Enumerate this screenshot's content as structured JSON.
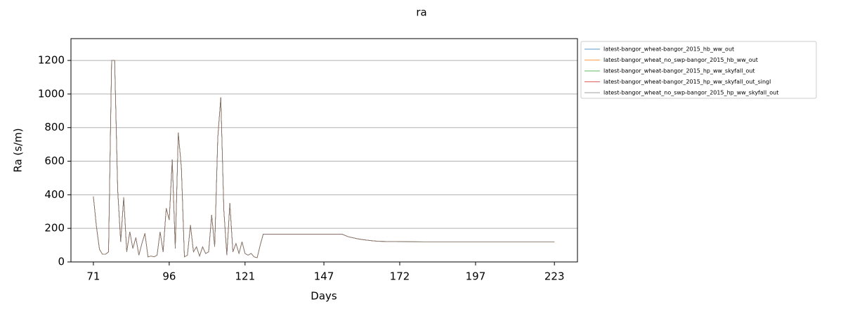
{
  "chart_data": {
    "type": "line",
    "title": "ra",
    "xlabel": "Days",
    "ylabel": "Ra (s/m)",
    "x": [
      71,
      72,
      73,
      74,
      75,
      76,
      77,
      78,
      79,
      80,
      81,
      82,
      83,
      84,
      85,
      86,
      87,
      88,
      89,
      90,
      91,
      92,
      93,
      94,
      95,
      96,
      97,
      98,
      99,
      100,
      101,
      102,
      103,
      104,
      105,
      106,
      107,
      108,
      109,
      110,
      111,
      112,
      113,
      114,
      115,
      116,
      117,
      118,
      119,
      120,
      121,
      122,
      123,
      124,
      125,
      126,
      127,
      130,
      135,
      140,
      145,
      150,
      153,
      155,
      158,
      160,
      163,
      165,
      170,
      180,
      190,
      200,
      210,
      223
    ],
    "series": [
      {
        "name": "latest-bangor_wheat-bangor_2015_hb_ww_out",
        "color": "#1f77b4",
        "values": [
          390,
          210,
          75,
          45,
          45,
          60,
          1200,
          1200,
          430,
          120,
          385,
          60,
          180,
          80,
          145,
          40,
          110,
          170,
          30,
          35,
          30,
          40,
          180,
          60,
          320,
          250,
          610,
          80,
          770,
          560,
          30,
          40,
          220,
          60,
          90,
          35,
          90,
          50,
          60,
          280,
          90,
          740,
          980,
          310,
          40,
          350,
          60,
          110,
          50,
          120,
          50,
          40,
          50,
          30,
          25,
          100,
          165,
          165,
          165,
          165,
          165,
          165,
          165,
          150,
          138,
          132,
          126,
          123,
          121,
          120,
          120,
          120,
          120,
          120
        ]
      },
      {
        "name": "latest-bangor_wheat_no_swp-bangor_2015_hb_ww_out",
        "color": "#ff7f0e",
        "values": [
          390,
          210,
          75,
          45,
          45,
          60,
          1200,
          1200,
          430,
          120,
          385,
          60,
          180,
          80,
          145,
          40,
          110,
          170,
          30,
          35,
          30,
          40,
          180,
          60,
          320,
          250,
          610,
          80,
          770,
          560,
          30,
          40,
          220,
          60,
          90,
          35,
          90,
          50,
          60,
          280,
          90,
          740,
          980,
          310,
          40,
          350,
          60,
          110,
          50,
          120,
          50,
          40,
          50,
          30,
          25,
          100,
          165,
          165,
          165,
          165,
          165,
          165,
          165,
          150,
          138,
          132,
          126,
          123,
          121,
          120,
          120,
          120,
          120,
          120
        ]
      },
      {
        "name": "latest-bangor_wheat-bangor_2015_hp_ww_skyfall_out",
        "color": "#2ca02c",
        "values": [
          390,
          210,
          75,
          45,
          45,
          60,
          1200,
          1200,
          430,
          120,
          385,
          60,
          180,
          80,
          145,
          40,
          110,
          170,
          30,
          35,
          30,
          40,
          180,
          60,
          320,
          250,
          610,
          80,
          770,
          560,
          30,
          40,
          220,
          60,
          90,
          35,
          90,
          50,
          60,
          280,
          90,
          740,
          980,
          310,
          40,
          350,
          60,
          110,
          50,
          120,
          50,
          40,
          50,
          30,
          25,
          100,
          165,
          165,
          165,
          165,
          165,
          165,
          165,
          150,
          138,
          132,
          126,
          123,
          121,
          120,
          120,
          120,
          120,
          120
        ]
      },
      {
        "name": "latest-bangor_wheat-bangor_2015_hp_ww_skyfall_out_singl",
        "color": "#d62728",
        "values": [
          390,
          210,
          75,
          45,
          45,
          60,
          1200,
          1200,
          430,
          120,
          385,
          60,
          180,
          80,
          145,
          40,
          110,
          170,
          30,
          35,
          30,
          40,
          180,
          60,
          320,
          250,
          610,
          80,
          770,
          560,
          30,
          40,
          220,
          60,
          90,
          35,
          90,
          50,
          60,
          280,
          90,
          740,
          980,
          310,
          40,
          350,
          60,
          110,
          50,
          120,
          50,
          40,
          50,
          30,
          25,
          100,
          165,
          165,
          165,
          165,
          165,
          165,
          165,
          150,
          138,
          132,
          126,
          123,
          121,
          120,
          120,
          120,
          120,
          120
        ]
      },
      {
        "name": "latest-bangor_wheat_no_swp-bangor_2015_hp_ww_skyfall_out",
        "color": "#7f7f7f",
        "values": [
          390,
          210,
          75,
          45,
          45,
          60,
          1200,
          1200,
          430,
          120,
          385,
          60,
          180,
          80,
          145,
          40,
          110,
          170,
          30,
          35,
          30,
          40,
          180,
          60,
          320,
          250,
          610,
          80,
          770,
          560,
          30,
          40,
          220,
          60,
          90,
          35,
          90,
          50,
          60,
          280,
          90,
          740,
          980,
          310,
          40,
          350,
          60,
          110,
          50,
          120,
          50,
          40,
          50,
          30,
          25,
          100,
          165,
          165,
          165,
          165,
          165,
          165,
          165,
          150,
          138,
          132,
          126,
          123,
          121,
          120,
          120,
          120,
          120,
          120
        ]
      }
    ],
    "xlim": [
      63.6,
      230.6
    ],
    "xticks": [
      71,
      96,
      121,
      147,
      172,
      197,
      223
    ],
    "ylim": [
      0,
      1330
    ],
    "yticks": [
      0,
      200,
      400,
      600,
      800,
      1000,
      1200
    ],
    "grid": true,
    "legend": "outside upper right"
  }
}
